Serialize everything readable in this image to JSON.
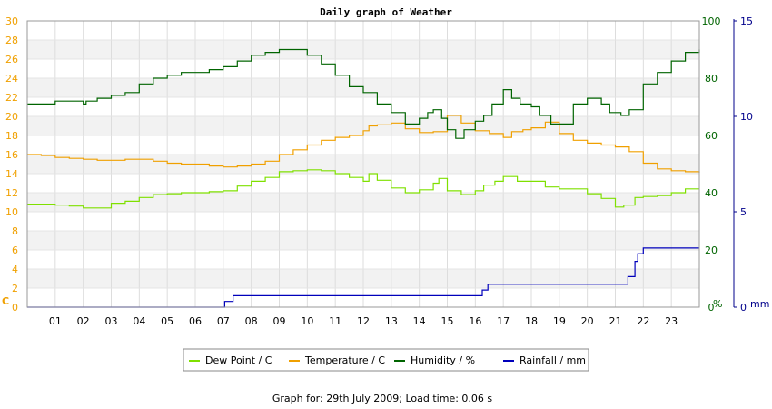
{
  "chart_data": {
    "type": "line",
    "title": "Daily graph of Weather",
    "footer": "Graph for: 29th July 2009; Load time: 0.06 s",
    "grid": true,
    "legend_position": "bottom",
    "x_tick_labels": [
      "01",
      "02",
      "03",
      "04",
      "05",
      "06",
      "07",
      "08",
      "09",
      "10",
      "11",
      "12",
      "13",
      "14",
      "15",
      "16",
      "17",
      "18",
      "19",
      "20",
      "21",
      "22",
      "23"
    ],
    "xlim": [
      0,
      24
    ],
    "axes": {
      "left": {
        "unit_label": "C",
        "ylim": [
          0,
          30
        ],
        "ticks": [
          0,
          2,
          4,
          6,
          8,
          10,
          12,
          14,
          16,
          18,
          20,
          22,
          24,
          26,
          28,
          30
        ],
        "color": "#f0a000"
      },
      "right1": {
        "unit_label": "%",
        "ylim": [
          0,
          100
        ],
        "ticks": [
          0,
          20,
          40,
          60,
          80,
          100
        ],
        "color": "#006400"
      },
      "right2": {
        "unit_label": "mm",
        "ylim": [
          0,
          15
        ],
        "ticks": [
          0,
          5,
          10,
          15
        ],
        "color": "#00008b"
      }
    },
    "series": [
      {
        "name": "Dew Point / C",
        "axis": "left",
        "color": "#7fe000",
        "x": [
          0,
          0.5,
          1,
          1.5,
          2,
          2.5,
          3,
          3.5,
          4,
          4.5,
          5,
          5.5,
          6,
          6.5,
          7,
          7.5,
          8,
          8.5,
          9,
          9.5,
          10,
          10.5,
          11,
          11.5,
          12,
          12.2,
          12.5,
          13,
          13.5,
          14,
          14.5,
          14.7,
          15,
          15.5,
          16,
          16.3,
          16.7,
          17,
          17.5,
          18,
          18.5,
          19,
          19.5,
          20,
          20.5,
          21,
          21.3,
          21.7,
          22,
          22.5,
          23,
          23.5,
          24
        ],
        "y": [
          10.8,
          10.8,
          10.7,
          10.6,
          10.4,
          10.4,
          10.9,
          11.1,
          11.5,
          11.8,
          11.9,
          12,
          12,
          12.1,
          12.2,
          12.7,
          13.2,
          13.6,
          14.2,
          14.3,
          14.4,
          14.3,
          14,
          13.6,
          13.2,
          14,
          13.3,
          12.5,
          12,
          12.3,
          13,
          13.5,
          12.2,
          11.8,
          12.2,
          12.8,
          13.2,
          13.7,
          13.2,
          13.2,
          12.6,
          12.4,
          12.4,
          11.9,
          11.4,
          10.5,
          10.7,
          11.5,
          11.6,
          11.7,
          12,
          12.4,
          12.4
        ]
      },
      {
        "name": "Temperature / C",
        "axis": "left",
        "color": "#f0a000",
        "x": [
          0,
          0.5,
          1,
          1.5,
          2,
          2.5,
          3,
          3.5,
          4,
          4.5,
          5,
          5.5,
          6,
          6.5,
          7,
          7.5,
          8,
          8.5,
          9,
          9.5,
          10,
          10.5,
          11,
          11.5,
          12,
          12.2,
          12.5,
          13,
          13.5,
          14,
          14.5,
          15,
          15.5,
          16,
          16.5,
          17,
          17.3,
          17.7,
          18,
          18.5,
          19,
          19.5,
          20,
          20.5,
          21,
          21.5,
          22,
          22.5,
          23,
          23.5,
          24
        ],
        "y": [
          16,
          15.9,
          15.7,
          15.6,
          15.5,
          15.4,
          15.4,
          15.5,
          15.5,
          15.3,
          15.1,
          15,
          15,
          14.8,
          14.7,
          14.8,
          15,
          15.3,
          16,
          16.5,
          17,
          17.5,
          17.8,
          18,
          18.5,
          19,
          19.1,
          19.3,
          18.7,
          18.3,
          18.4,
          20.1,
          19.3,
          18.5,
          18.2,
          17.8,
          18.4,
          18.6,
          18.8,
          19.4,
          18.2,
          17.5,
          17.2,
          17,
          16.8,
          16.3,
          15.1,
          14.5,
          14.3,
          14.2,
          14.1
        ]
      },
      {
        "name": "Humidity / %",
        "axis": "right1",
        "color": "#006400",
        "x": [
          0,
          0.5,
          1,
          1.5,
          1.9,
          2,
          2.1,
          2.5,
          3,
          3.5,
          4,
          4.5,
          5,
          5.5,
          6,
          6.5,
          7,
          7.5,
          8,
          8.5,
          9,
          9.5,
          10,
          10.5,
          11,
          11.5,
          12,
          12.5,
          13,
          13.5,
          14,
          14.3,
          14.5,
          14.8,
          15,
          15.3,
          15.6,
          16,
          16.3,
          16.6,
          17,
          17.3,
          17.6,
          18,
          18.3,
          18.7,
          19,
          19.5,
          20,
          20.5,
          20.8,
          21.2,
          21.5,
          22,
          22.5,
          23,
          23.5,
          24
        ],
        "y": [
          71,
          71,
          72,
          72,
          72,
          71,
          72,
          73,
          74,
          75,
          78,
          80,
          81,
          82,
          82,
          83,
          84,
          86,
          88,
          89,
          90,
          90,
          88,
          85,
          81,
          77,
          75,
          71,
          68,
          64,
          66,
          68,
          69,
          66,
          62,
          59,
          62,
          65,
          67,
          71,
          76,
          73,
          71,
          70,
          67,
          64,
          64,
          71,
          73,
          71,
          68,
          67,
          69,
          78,
          82,
          86,
          89,
          90
        ]
      },
      {
        "name": "Rainfall / mm",
        "axis": "right2",
        "color": "#0000bb",
        "x": [
          0,
          7,
          7.05,
          7.3,
          7.35,
          9,
          12,
          15,
          16.2,
          16.25,
          16.4,
          16.45,
          19,
          21,
          21.4,
          21.45,
          21.7,
          21.8,
          22,
          22.2,
          22.5,
          23,
          24
        ],
        "y": [
          0,
          0,
          0.3,
          0.3,
          0.6,
          0.6,
          0.6,
          0.6,
          0.6,
          0.9,
          0.9,
          1.2,
          1.2,
          1.2,
          1.2,
          1.6,
          2.4,
          2.8,
          3.1,
          3.1,
          3.1,
          3.1,
          3.1
        ]
      }
    ]
  }
}
